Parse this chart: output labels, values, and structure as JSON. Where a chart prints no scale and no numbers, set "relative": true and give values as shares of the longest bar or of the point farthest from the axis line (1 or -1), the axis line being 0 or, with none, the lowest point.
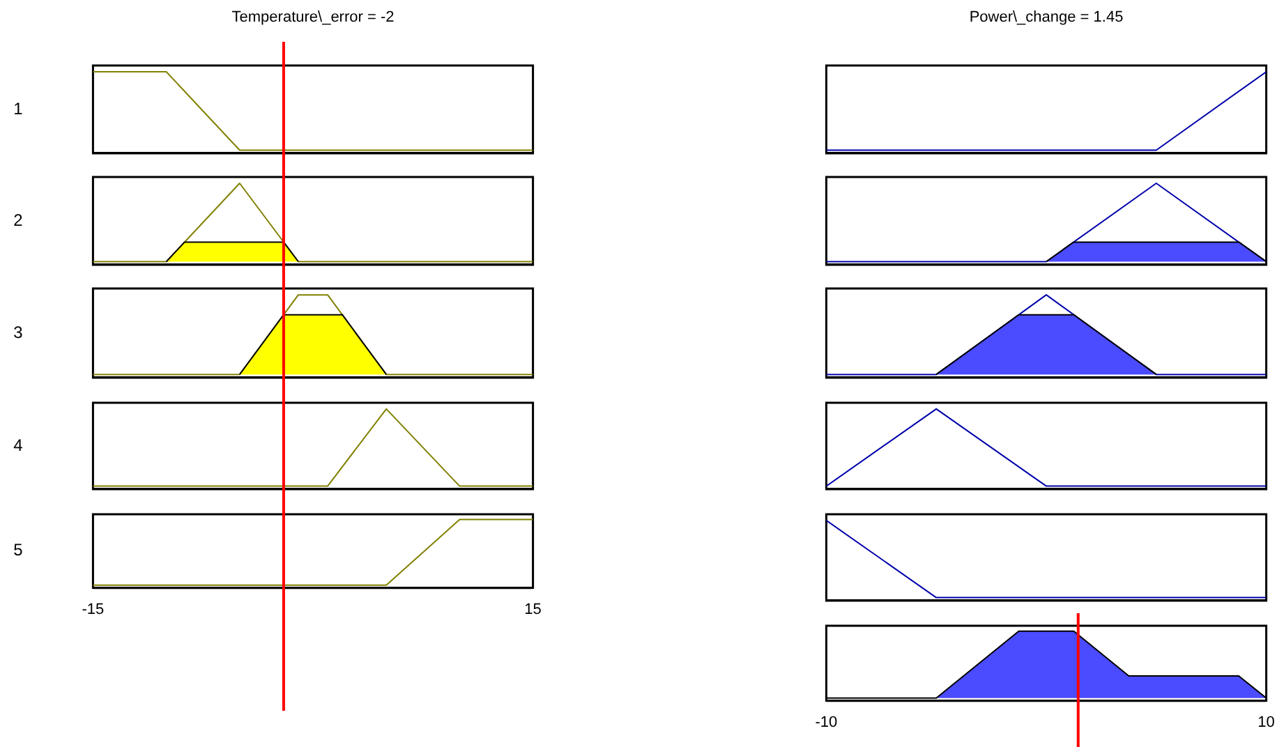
{
  "chart_data": [
    {
      "type": "line",
      "title": "Temperature\\_error = -2",
      "ylabel": "1",
      "relative": true,
      "xlim": [
        -15,
        15
      ],
      "tick_labels": false,
      "ref_lines": [
        {
          "axis": "x",
          "value": -2,
          "color": "#ff0000"
        }
      ],
      "series": [
        {
          "color": "#808000",
          "x": [
            -15,
            -10,
            -5,
            15
          ],
          "values": [
            1,
            1,
            0,
            0
          ]
        }
      ]
    },
    {
      "type": "line",
      "title": "Power\\_change = 1.45",
      "relative": true,
      "xlim": [
        -10,
        10
      ],
      "tick_labels": false,
      "series": [
        {
          "color": "#0000aa",
          "x": [
            -10,
            5,
            10
          ],
          "values": [
            0,
            0,
            1
          ]
        }
      ]
    },
    {
      "type": "line",
      "ylabel": "2",
      "relative": true,
      "xlim": [
        -15,
        15
      ],
      "tick_labels": false,
      "ref_lines": [
        {
          "axis": "x",
          "value": -2,
          "color": "#ff0000"
        }
      ],
      "series": [
        {
          "type": "area",
          "color": "#ffff00",
          "x": [
            -10,
            -8.75,
            -2,
            -1
          ],
          "values": [
            0,
            0.25,
            0.25,
            0
          ]
        },
        {
          "color": "#808000",
          "x": [
            -15,
            -10,
            -5,
            -1,
            15
          ],
          "values": [
            0,
            0,
            1,
            0,
            0
          ]
        }
      ]
    },
    {
      "type": "line",
      "relative": true,
      "xlim": [
        -10,
        10
      ],
      "tick_labels": false,
      "series": [
        {
          "type": "area",
          "color": "#4b4bff",
          "x": [
            0,
            1.25,
            8.75,
            10
          ],
          "values": [
            0,
            0.25,
            0.25,
            0
          ]
        },
        {
          "color": "#0000aa",
          "x": [
            -10,
            0,
            5,
            10
          ],
          "values": [
            0,
            0,
            1,
            0
          ]
        }
      ]
    },
    {
      "type": "line",
      "ylabel": "3",
      "relative": true,
      "xlim": [
        -15,
        15
      ],
      "tick_labels": false,
      "ref_lines": [
        {
          "axis": "x",
          "value": -2,
          "color": "#ff0000"
        }
      ],
      "series": [
        {
          "type": "area",
          "color": "#ffff00",
          "x": [
            -5,
            -2,
            2,
            5
          ],
          "values": [
            0,
            0.75,
            0.75,
            0
          ]
        },
        {
          "color": "#808000",
          "x": [
            -15,
            -5,
            -1,
            1,
            5,
            15
          ],
          "values": [
            0,
            0,
            1,
            1,
            0,
            0
          ]
        }
      ]
    },
    {
      "type": "line",
      "relative": true,
      "xlim": [
        -10,
        10
      ],
      "tick_labels": false,
      "series": [
        {
          "type": "area",
          "color": "#4b4bff",
          "x": [
            -5,
            -1.25,
            1.25,
            5
          ],
          "values": [
            0,
            0.75,
            0.75,
            0
          ]
        },
        {
          "color": "#0000aa",
          "x": [
            -10,
            -5,
            0,
            5,
            10
          ],
          "values": [
            0,
            0,
            1,
            0,
            0
          ]
        }
      ]
    },
    {
      "type": "line",
      "ylabel": "4",
      "relative": true,
      "xlim": [
        -15,
        15
      ],
      "tick_labels": false,
      "ref_lines": [
        {
          "axis": "x",
          "value": -2,
          "color": "#ff0000"
        }
      ],
      "series": [
        {
          "color": "#808000",
          "x": [
            -15,
            1,
            5,
            10,
            15
          ],
          "values": [
            0,
            0,
            1,
            0,
            0
          ]
        }
      ]
    },
    {
      "type": "line",
      "relative": true,
      "xlim": [
        -10,
        10
      ],
      "tick_labels": false,
      "series": [
        {
          "color": "#0000aa",
          "x": [
            -10,
            -5,
            0,
            10
          ],
          "values": [
            0,
            1,
            0,
            0
          ]
        }
      ]
    },
    {
      "type": "line",
      "ylabel": "5",
      "relative": true,
      "xlim": [
        -15,
        15
      ],
      "xticks": [
        -15,
        15
      ],
      "tick_labels": "x",
      "ref_lines": [
        {
          "axis": "x",
          "value": -2,
          "color": "#ff0000"
        }
      ],
      "series": [
        {
          "color": "#808000",
          "x": [
            -15,
            5,
            10,
            15
          ],
          "values": [
            0,
            0,
            1,
            1
          ]
        }
      ]
    },
    {
      "type": "line",
      "relative": true,
      "xlim": [
        -10,
        10
      ],
      "tick_labels": false,
      "series": [
        {
          "color": "#0000aa",
          "x": [
            -10,
            -5,
            10
          ],
          "values": [
            1,
            0,
            0
          ]
        }
      ]
    },
    {
      "type": "area",
      "relative": true,
      "xlim": [
        -10,
        10
      ],
      "xticks": [
        -10,
        10
      ],
      "tick_labels": "x",
      "ref_lines": [
        {
          "axis": "x",
          "value": 1.45,
          "color": "#ff0000"
        }
      ],
      "series": [
        {
          "color": "#4b4bff",
          "x": [
            -10,
            -5,
            -1.25,
            1.25,
            3.75,
            8.75,
            10
          ],
          "values": [
            0,
            0,
            1,
            1,
            0.33,
            0.33,
            0
          ]
        }
      ]
    }
  ]
}
